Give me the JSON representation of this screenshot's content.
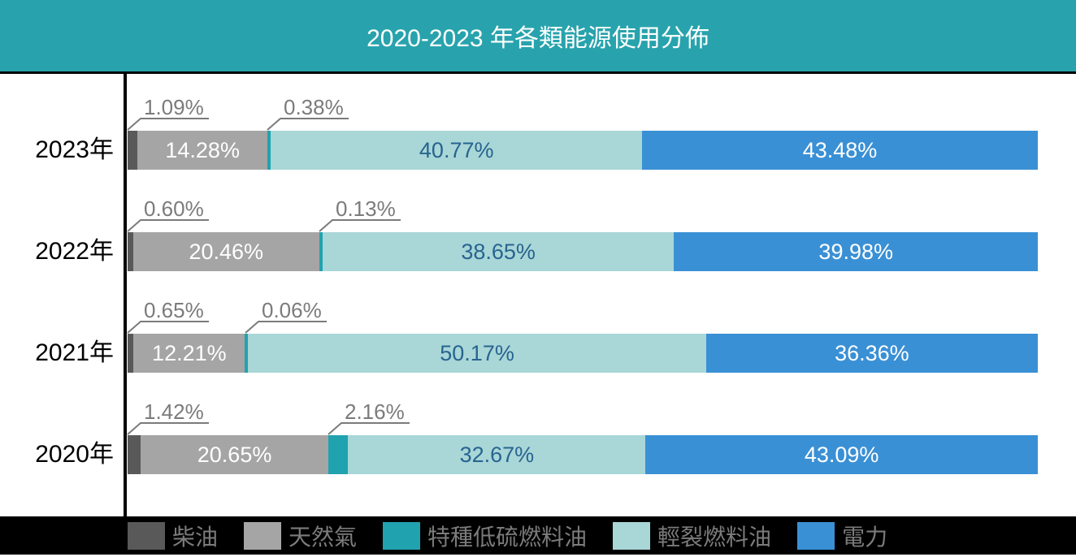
{
  "title": "2020-2023 年各類能源使用分佈",
  "colors": {
    "header_bg": "#28A3AD",
    "title_text": "#FFFFFF",
    "axis_line": "#000000",
    "chart_bg": "#FFFFFF",
    "year_label": "#000000",
    "callout": "#7B7B7B",
    "inline_light_text": "#FFFFFF",
    "inline_dark_text": "#27648F",
    "legend_bg": "#000000",
    "legend_text": "#7B7B7B"
  },
  "chart_data": {
    "type": "bar",
    "orientation": "horizontal",
    "stacked": true,
    "unit": "%",
    "title": "2020-2023 年各類能源使用分佈",
    "xlim": [
      0,
      100
    ],
    "grid": false,
    "legend_position": "bottom",
    "categories": [
      "2023年",
      "2022年",
      "2021年",
      "2020年"
    ],
    "series": [
      {
        "key": "diesel",
        "name": "柴油",
        "color": "#595959",
        "label_mode": "callout",
        "values": [
          1.09,
          0.6,
          0.65,
          1.42
        ]
      },
      {
        "key": "natural-gas",
        "name": "天然氣",
        "color": "#A5A5A5",
        "label_mode": "inline-white",
        "values": [
          14.28,
          20.46,
          12.21,
          20.65
        ]
      },
      {
        "key": "special-low-sulfur-fuel-oil",
        "name": "特種低硫燃料油",
        "color": "#21A2AF",
        "label_mode": "callout",
        "values": [
          0.38,
          0.13,
          0.06,
          2.16
        ]
      },
      {
        "key": "light-cracked-fuel-oil",
        "name": "輕裂燃料油",
        "color": "#A9D6D7",
        "label_mode": "inline-dark",
        "values": [
          40.77,
          38.65,
          50.17,
          32.67
        ]
      },
      {
        "key": "electricity",
        "name": "電力",
        "color": "#3A90D5",
        "label_mode": "inline-white",
        "values": [
          43.48,
          39.98,
          36.36,
          43.09
        ]
      }
    ]
  }
}
